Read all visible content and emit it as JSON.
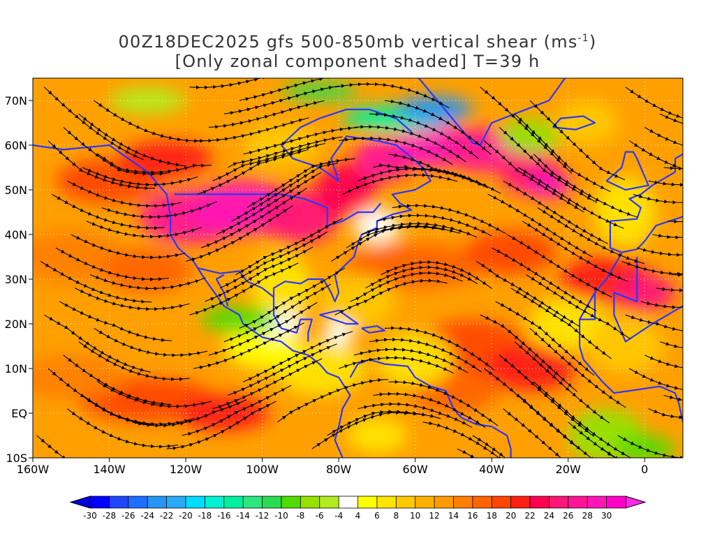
{
  "title": {
    "line1": "00Z18DEC2025 gfs 500-850mb vertical shear (ms",
    "line1_sup": "-1",
    "line1_end": ")",
    "line2": "[Only zonal component shaded] T=39 h"
  },
  "map": {
    "lon_labels": [
      "160W",
      "140W",
      "120W",
      "100W",
      "80W",
      "60W",
      "40W",
      "20W",
      "0"
    ],
    "lat_labels": [
      "70N",
      "60N",
      "50N",
      "40N",
      "30N",
      "20N",
      "10N",
      "EQ",
      "10S"
    ],
    "lon_range": [
      -160,
      10
    ],
    "lat_range": [
      -10,
      75
    ],
    "overlays": [
      "streamlines-black",
      "coastlines-blue",
      "borders-blue",
      "grid-dotted-white"
    ]
  },
  "colorbar": {
    "labels": [
      "-30",
      "-28",
      "-26",
      "-24",
      "-22",
      "-20",
      "-18",
      "-16",
      "-14",
      "-12",
      "-10",
      "-8",
      "-6",
      "-4",
      "4",
      "6",
      "8",
      "10",
      "12",
      "14",
      "16",
      "18",
      "20",
      "22",
      "24",
      "26",
      "28",
      "30"
    ],
    "colors": [
      "#0000ff",
      "#1e46ff",
      "#1e6eff",
      "#2894f5",
      "#28aaf5",
      "#00dcff",
      "#00f0d2",
      "#00f0a0",
      "#2de67d",
      "#2adc50",
      "#50dc00",
      "#96e100",
      "#b4eb1e",
      "#ffffff",
      "#ffff00",
      "#ffe400",
      "#ffc800",
      "#ffaf00",
      "#ff9a00",
      "#ff7f00",
      "#ff6400",
      "#ff4600",
      "#ff1e14",
      "#ff0050",
      "#ff1478",
      "#ff1496",
      "#ff14b4",
      "#ff00c8"
    ],
    "under_color": "#0000dc",
    "over_color": "#ff28e6"
  }
}
